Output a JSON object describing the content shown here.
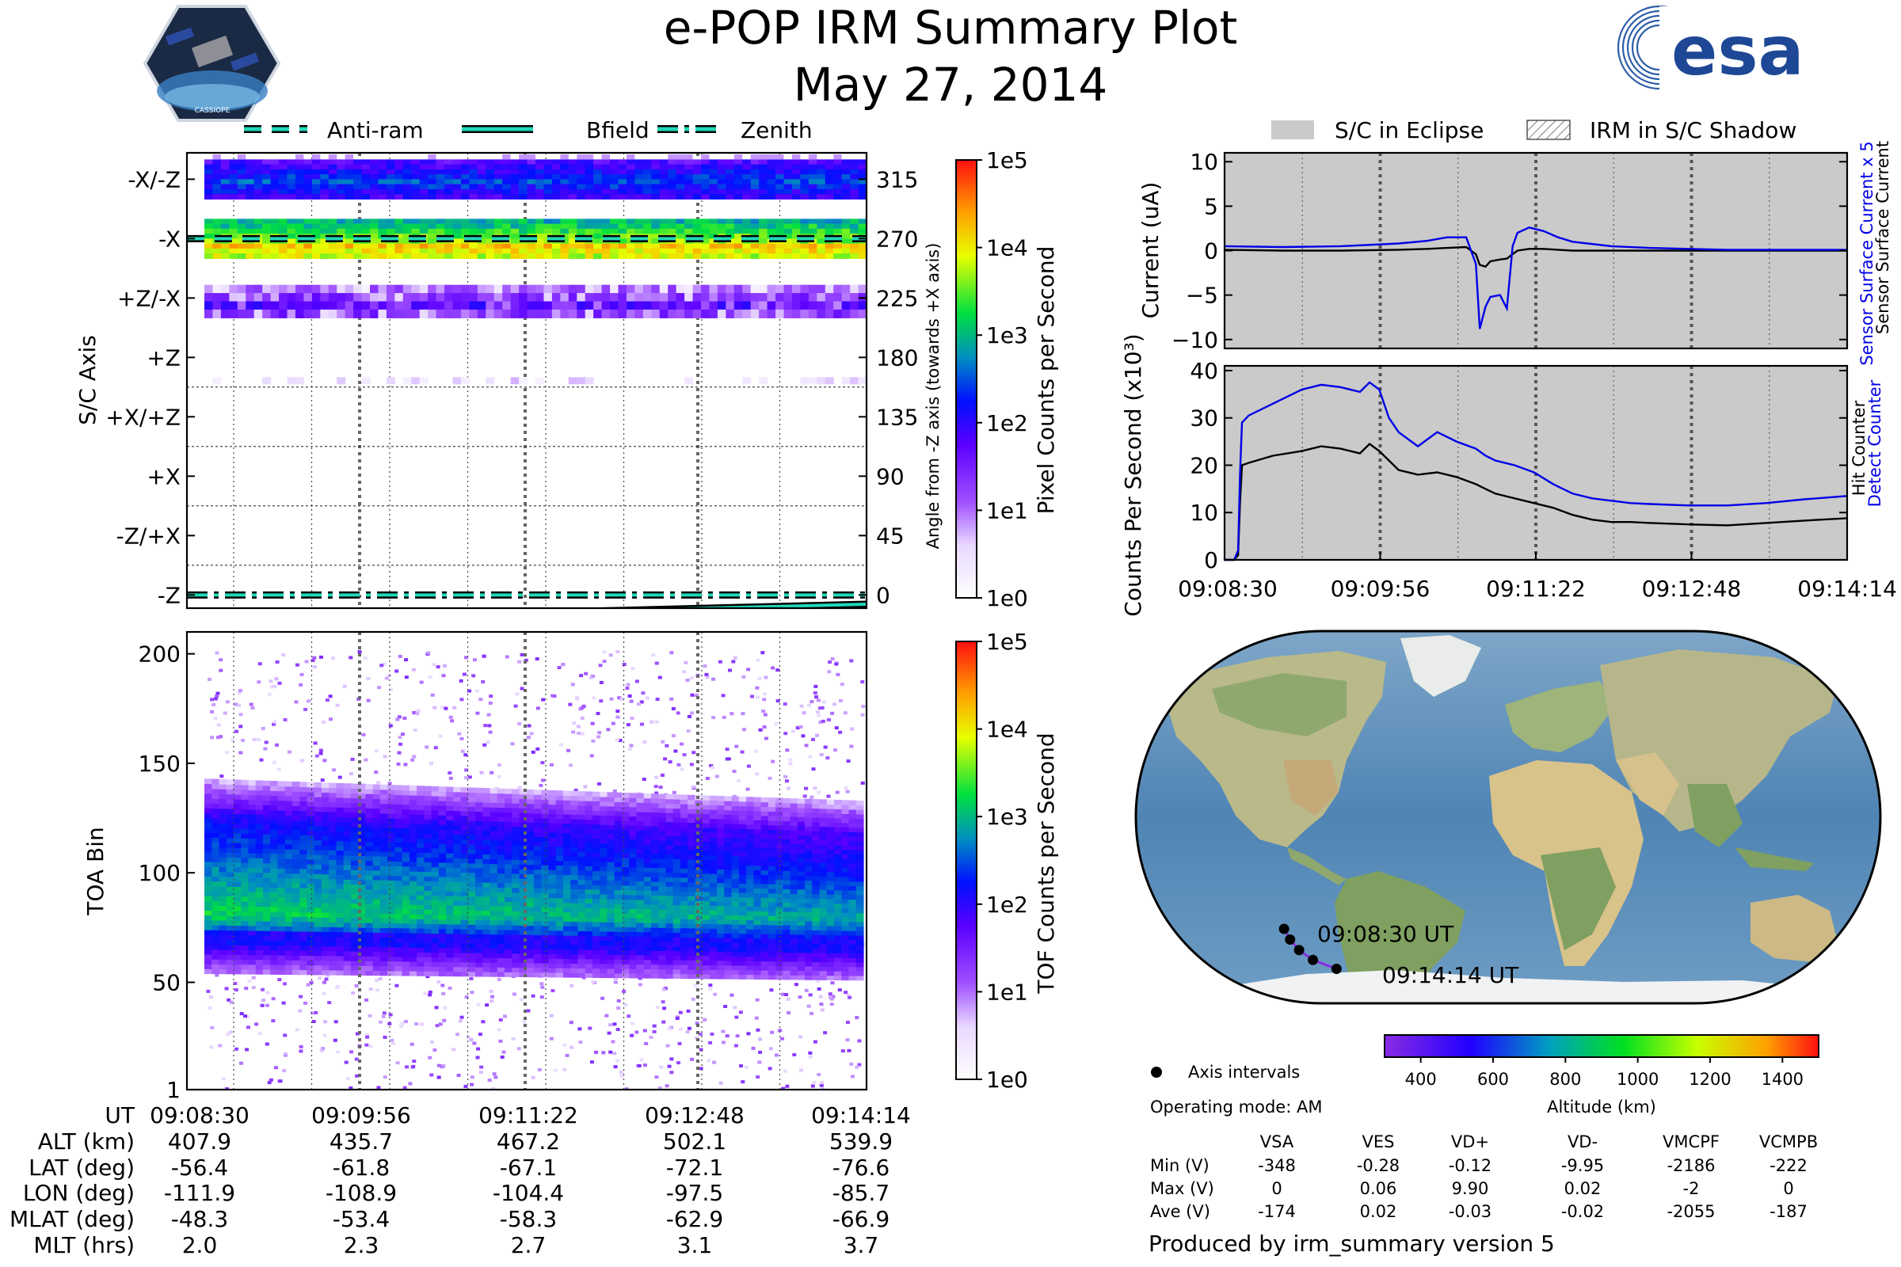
{
  "title": "e-POP IRM Summary Plot",
  "date": "May 27, 2014",
  "esa_logo_text": "esa",
  "cassiope_logo_text": "CASSIOPE",
  "colors": {
    "eclipse_bg": "#c9cac9",
    "black_series": "#000000",
    "blue_series": "#0000e6",
    "trace_cyan": "#20d8b8"
  },
  "legend_top_left": [
    {
      "label": "Anti-ram",
      "style": "dashed"
    },
    {
      "label": "Bfield",
      "style": "solid"
    },
    {
      "label": "Zenith",
      "style": "dashdot"
    }
  ],
  "legend_top_right": [
    {
      "label": "S/C in Eclipse",
      "style": "filled"
    },
    {
      "label": "IRM in S/C Shadow",
      "style": "hatched"
    }
  ],
  "chart_data": [
    {
      "id": "pixel_spectrogram",
      "type": "heatmap",
      "ylabel": "S/C Axis",
      "y2label": "Angle from -Z axis (towards +X axis)",
      "colorbar_label": "Pixel Counts per Second",
      "colorbar_ticks": [
        "1e0",
        "1e1",
        "1e2",
        "1e3",
        "1e4",
        "1e5"
      ],
      "ylim": [
        -10,
        335
      ],
      "y_axis_labels": [
        {
          "label": "-X/-Z",
          "angle": 315
        },
        {
          "label": "-X",
          "angle": 270
        },
        {
          "label": "+Z/-X",
          "angle": 225
        },
        {
          "label": "+Z",
          "angle": 180
        },
        {
          "label": "+X/+Z",
          "angle": 135
        },
        {
          "label": "+X",
          "angle": 90
        },
        {
          "label": "-Z/+X",
          "angle": 45
        },
        {
          "label": "-Z",
          "angle": 0
        }
      ],
      "y2_ticks": [
        "315",
        "270",
        "225",
        "180",
        "135",
        "90",
        "45",
        "0"
      ],
      "bands": [
        {
          "sector": "-X/-Z",
          "angle_range": [
            300,
            330
          ],
          "log10_counts": 2.1
        },
        {
          "sector": "-X",
          "angle_range": [
            255,
            285
          ],
          "log10_counts": 3.3
        },
        {
          "sector": "+Z/-X",
          "angle_range": [
            210,
            235
          ],
          "log10_counts": 1.4
        },
        {
          "sector": "+Z",
          "angle_range": [
            160,
            165
          ],
          "log10_counts": 0.8
        }
      ],
      "traces": [
        {
          "name": "Anti-ram",
          "style": "dashed",
          "angle": [
            270,
            270
          ]
        },
        {
          "name": "Zenith",
          "style": "dashdot",
          "angle": [
            0,
            0
          ]
        },
        {
          "name": "Bfield",
          "style": "solid",
          "angle": [
            -20,
            -7
          ]
        }
      ]
    },
    {
      "id": "tof_spectrogram",
      "type": "heatmap",
      "ylabel": "TOA Bin",
      "colorbar_label": "TOF Counts per Second",
      "colorbar_ticks": [
        "1e0",
        "1e1",
        "1e2",
        "1e3",
        "1e4",
        "1e5"
      ],
      "ylim": [
        1,
        210
      ],
      "yticks": [
        "200",
        "150",
        "100",
        "50",
        "1"
      ],
      "ytick_values": [
        200,
        150,
        100,
        50,
        1
      ],
      "core_band": {
        "low": [
          68,
          65
        ],
        "high": [
          125,
          115
        ],
        "peak_log10": 3.2
      }
    },
    {
      "id": "current",
      "type": "line",
      "ylabel": "Current (uA)",
      "y2label_black": "Sensor Surface Current",
      "y2label_blue": "Sensor Surface Current x 5",
      "ylim": [
        -11,
        11
      ],
      "yticks": [
        "10",
        "5",
        "0",
        "−5",
        "−10"
      ],
      "ytick_values": [
        10,
        5,
        0,
        -5,
        -10
      ],
      "x_seconds": [
        0,
        60,
        120,
        180,
        210,
        230,
        250,
        260,
        264,
        270,
        275,
        285,
        292,
        298,
        303,
        315,
        330,
        345,
        360,
        400,
        440,
        480,
        520,
        560,
        600,
        644
      ],
      "series": [
        {
          "name": "Sensor Surface Current",
          "color": "black",
          "values": [
            0.1,
            0.0,
            0.0,
            0.1,
            0.2,
            0.3,
            0.4,
            -0.4,
            -1.6,
            -1.8,
            -1.2,
            -1.0,
            -0.9,
            -0.4,
            0.0,
            0.2,
            0.2,
            0.1,
            0.0,
            0.0,
            0.0,
            0.0,
            0.0,
            0.0,
            0.0,
            0.0
          ]
        },
        {
          "name": "Sensor Surface Current x 5",
          "color": "blue",
          "values": [
            0.5,
            0.4,
            0.5,
            0.8,
            1.1,
            1.5,
            1.5,
            -1.5,
            -8.8,
            -6.3,
            -5.2,
            -5.0,
            -6.5,
            0.5,
            2.0,
            2.6,
            2.2,
            1.5,
            1.0,
            0.5,
            0.3,
            0.2,
            0.1,
            0.1,
            0.1,
            0.1
          ]
        }
      ]
    },
    {
      "id": "counts",
      "type": "line",
      "ylabel": "Counts Per Second (x10³)",
      "y2label_black": "Hit Counter",
      "y2label_blue": "Detect Counter",
      "ylim": [
        0,
        41
      ],
      "yticks": [
        "40",
        "30",
        "20",
        "10",
        "0"
      ],
      "ytick_values": [
        40,
        30,
        20,
        10,
        0
      ],
      "xticks": [
        "09:08:30",
        "09:09:56",
        "09:11:22",
        "09:12:48",
        "09:14:14"
      ],
      "x_seconds": [
        0,
        10,
        14,
        16,
        18,
        25,
        50,
        80,
        100,
        120,
        140,
        150,
        160,
        170,
        180,
        200,
        220,
        240,
        260,
        270,
        280,
        300,
        320,
        340,
        360,
        380,
        400,
        420,
        440,
        480,
        520,
        560,
        600,
        644
      ],
      "series": [
        {
          "name": "Hit Counter",
          "color": "black",
          "values": [
            0,
            0,
            1,
            12,
            20,
            20.5,
            22,
            23,
            24,
            23.5,
            22.5,
            24.5,
            23,
            21,
            19,
            18,
            18.5,
            17.5,
            16,
            15,
            14,
            13,
            12,
            11,
            9.5,
            8.5,
            8,
            8,
            7.8,
            7.5,
            7.3,
            7.8,
            8.3,
            8.8
          ]
        },
        {
          "name": "Detect Counter",
          "color": "blue",
          "values": [
            0,
            0,
            2,
            18,
            29,
            30.5,
            33,
            36,
            37,
            36.5,
            35.5,
            37.5,
            36,
            30,
            27,
            24,
            27,
            25,
            23.5,
            22,
            21,
            20,
            18.5,
            16,
            14,
            13,
            12.5,
            12,
            11.8,
            11.5,
            11.5,
            12,
            12.8,
            13.5
          ]
        }
      ]
    },
    {
      "id": "ground_track",
      "type": "scatter",
      "projection": "world map",
      "start_label": "09:08:30 UT",
      "end_label": "09:14:14 UT",
      "points": [
        {
          "lon": -111.9,
          "lat": -56.4
        },
        {
          "lon": -108.9,
          "lat": -61.8
        },
        {
          "lon": -104.4,
          "lat": -67.1
        },
        {
          "lon": -97.5,
          "lat": -72.1
        },
        {
          "lon": -85.7,
          "lat": -76.6
        }
      ],
      "altitude_colorbar": {
        "label": "Altitude (km)",
        "ticks": [
          "400",
          "600",
          "800",
          "1000",
          "1200",
          "1400"
        ],
        "range": [
          300,
          1500
        ]
      }
    }
  ],
  "time_axis": {
    "start": "09:08:30",
    "end": "09:14:14",
    "ticks": [
      "09:08:30",
      "09:09:56",
      "09:11:22",
      "09:12:48",
      "09:14:14"
    ]
  },
  "ephemeris": {
    "row_labels": [
      "UT",
      "ALT (km)",
      "LAT (deg)",
      "LON (deg)",
      "MLAT (deg)",
      "MLT (hrs)"
    ],
    "columns": [
      [
        "09:08:30",
        "407.9",
        "-56.4",
        "-111.9",
        "-48.3",
        "2.0"
      ],
      [
        "09:09:56",
        "435.7",
        "-61.8",
        "-108.9",
        "-53.4",
        "2.3"
      ],
      [
        "09:11:22",
        "467.2",
        "-67.1",
        "-104.4",
        "-58.3",
        "2.7"
      ],
      [
        "09:12:48",
        "502.1",
        "-72.1",
        "-97.5",
        "-62.9",
        "3.1"
      ],
      [
        "09:14:14",
        "539.9",
        "-76.6",
        "-85.7",
        "-66.9",
        "3.7"
      ]
    ]
  },
  "map_legend": "Axis intervals",
  "operating_mode": "Operating mode: AM",
  "voltage_table": {
    "headers": [
      "VSA",
      "VES",
      "VD+",
      "VD-",
      "VMCPF",
      "VCMPB"
    ],
    "rows": [
      {
        "label": "Min (V)",
        "values": [
          "-348",
          "-0.28",
          "-0.12",
          "-9.95",
          "-2186",
          "-222"
        ]
      },
      {
        "label": "Max (V)",
        "values": [
          "0",
          "0.06",
          "9.90",
          "0.02",
          "-2",
          "0"
        ]
      },
      {
        "label": "Ave (V)",
        "values": [
          "-174",
          "0.02",
          "-0.03",
          "-0.02",
          "-2055",
          "-187"
        ]
      }
    ]
  },
  "footer": "Produced by irm_summary version 5"
}
